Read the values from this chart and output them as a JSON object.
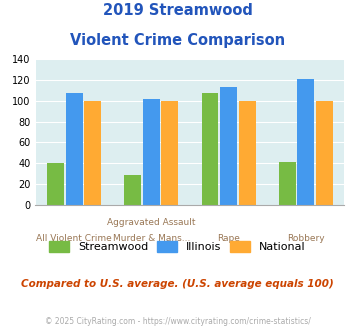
{
  "title_line1": "2019 Streamwood",
  "title_line2": "Violent Crime Comparison",
  "cat_labels_top": [
    "",
    "Aggravated Assault",
    "",
    ""
  ],
  "cat_labels_bot": [
    "All Violent Crime",
    "Murder & Mans...",
    "Rape",
    "Robbery"
  ],
  "streamwood": [
    40,
    29,
    108,
    41
  ],
  "illinois": [
    108,
    102,
    113,
    121
  ],
  "national": [
    100,
    100,
    100,
    100
  ],
  "color_streamwood": "#77bb44",
  "color_illinois": "#4499ee",
  "color_national": "#ffaa33",
  "color_title": "#2255bb",
  "color_bg_plot": "#ddeef0",
  "color_note": "#cc4400",
  "color_footer": "#aaaaaa",
  "color_xlabel": "#997755",
  "ylim": [
    0,
    140
  ],
  "yticks": [
    0,
    20,
    40,
    60,
    80,
    100,
    120,
    140
  ],
  "footnote": "Compared to U.S. average. (U.S. average equals 100)",
  "footer": "© 2025 CityRating.com - https://www.cityrating.com/crime-statistics/",
  "legend_labels": [
    "Streamwood",
    "Illinois",
    "National"
  ]
}
